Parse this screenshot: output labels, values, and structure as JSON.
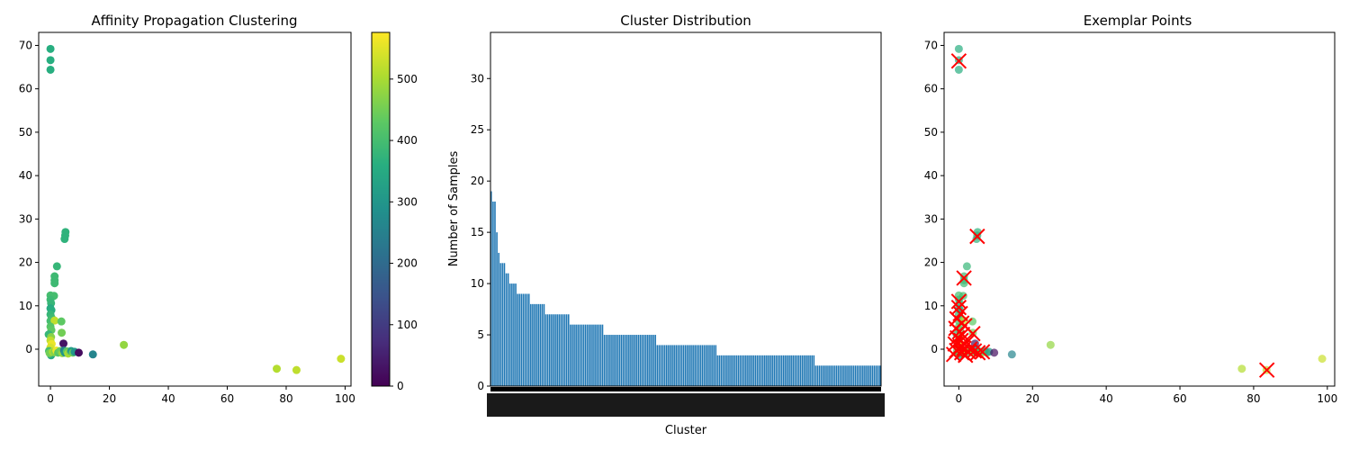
{
  "chart_data": [
    {
      "type": "scatter",
      "title": "Affinity Propagation Clustering",
      "xlim": [
        -4,
        102
      ],
      "ylim": [
        -8.5,
        73
      ],
      "xticks": [
        0,
        20,
        40,
        60,
        80,
        100
      ],
      "yticks": [
        0,
        10,
        20,
        30,
        40,
        50,
        60,
        70
      ],
      "points": [
        [
          0,
          69.2,
          360
        ],
        [
          0,
          66.6,
          360
        ],
        [
          0,
          64.4,
          360
        ],
        [
          5.1,
          27.0,
          370
        ],
        [
          5.0,
          26.2,
          370
        ],
        [
          4.8,
          25.4,
          370
        ],
        [
          2.2,
          19.1,
          380
        ],
        [
          1.4,
          16.8,
          390
        ],
        [
          1.4,
          15.9,
          390
        ],
        [
          1.4,
          15.2,
          390
        ],
        [
          0,
          12.4,
          400
        ],
        [
          1.2,
          12.3,
          400
        ],
        [
          0,
          11.4,
          390
        ],
        [
          0.2,
          10.6,
          380
        ],
        [
          0,
          9.4,
          350
        ],
        [
          0.3,
          9.0,
          360
        ],
        [
          0,
          8.0,
          380
        ],
        [
          0.4,
          7.2,
          390
        ],
        [
          0,
          6.5,
          400
        ],
        [
          1.4,
          6.6,
          520
        ],
        [
          3.7,
          6.4,
          430
        ],
        [
          0,
          5.2,
          420
        ],
        [
          0.3,
          4.4,
          430
        ],
        [
          3.8,
          3.8,
          450
        ],
        [
          -0.6,
          3.4,
          380
        ],
        [
          0.2,
          2.8,
          470
        ],
        [
          0,
          2.0,
          520
        ],
        [
          0.4,
          1.2,
          560
        ],
        [
          0,
          0.4,
          540
        ],
        [
          -0.5,
          -0.4,
          400
        ],
        [
          0,
          -1.0,
          330
        ],
        [
          0.2,
          -1.4,
          350
        ],
        [
          -0.3,
          -0.9,
          450
        ],
        [
          0.8,
          -0.6,
          500
        ],
        [
          1.4,
          -0.7,
          470
        ],
        [
          2.0,
          -0.3,
          560
        ],
        [
          2.6,
          -0.8,
          420
        ],
        [
          3.3,
          -0.4,
          440
        ],
        [
          4.0,
          -0.9,
          480
        ],
        [
          4.4,
          1.3,
          30
        ],
        [
          4.6,
          -0.3,
          250
        ],
        [
          4.9,
          -0.8,
          300
        ],
        [
          5.6,
          -0.5,
          430
        ],
        [
          6.0,
          -1.0,
          500
        ],
        [
          6.5,
          -0.6,
          480
        ],
        [
          7.0,
          -0.4,
          320
        ],
        [
          7.6,
          -0.8,
          440
        ],
        [
          8.2,
          -0.6,
          300
        ],
        [
          9.6,
          -0.8,
          20
        ],
        [
          14.4,
          -1.2,
          260
        ],
        [
          24.9,
          1.0,
          480
        ],
        [
          76.8,
          -4.5,
          510
        ],
        [
          83.5,
          -4.8,
          520
        ],
        [
          98.6,
          -2.2,
          530
        ]
      ],
      "colorbar": {
        "cmin": 0,
        "cmax": 576,
        "ticks": [
          0,
          100,
          200,
          300,
          400,
          500
        ]
      }
    },
    {
      "type": "bar",
      "title": "Cluster Distribution",
      "xlabel": "Cluster",
      "ylabel": "Number of Samples",
      "ylim": [
        0,
        34.5
      ],
      "yticks": [
        0,
        5,
        10,
        15,
        20,
        25,
        30
      ],
      "bar_color": "#1f77b4",
      "values": [
        19,
        18,
        18,
        15,
        13,
        12,
        12,
        12,
        11,
        11,
        10,
        10,
        10,
        10,
        9,
        9,
        9,
        9,
        9,
        9,
        9,
        8,
        8,
        8,
        8,
        8,
        8,
        8,
        8,
        7,
        7,
        7,
        7,
        7,
        7,
        7,
        7,
        7,
        7,
        7,
        7,
        7,
        6,
        6,
        6,
        6,
        6,
        6,
        6,
        6,
        6,
        6,
        6,
        6,
        6,
        6,
        6,
        6,
        6,
        6,
        5,
        5,
        5,
        5,
        5,
        5,
        5,
        5,
        5,
        5,
        5,
        5,
        5,
        5,
        5,
        5,
        5,
        5,
        5,
        5,
        5,
        5,
        5,
        5,
        5,
        5,
        5,
        5,
        4,
        4,
        4,
        4,
        4,
        4,
        4,
        4,
        4,
        4,
        4,
        4,
        4,
        4,
        4,
        4,
        4,
        4,
        4,
        4,
        4,
        4,
        4,
        4,
        4,
        4,
        4,
        4,
        4,
        4,
        4,
        4,
        3,
        3,
        3,
        3,
        3,
        3,
        3,
        3,
        3,
        3,
        3,
        3,
        3,
        3,
        3,
        3,
        3,
        3,
        3,
        3,
        3,
        3,
        3,
        3,
        3,
        3,
        3,
        3,
        3,
        3,
        3,
        3,
        3,
        3,
        3,
        3,
        3,
        3,
        3,
        3,
        3,
        3,
        3,
        3,
        3,
        3,
        3,
        3,
        3,
        3,
        3,
        3,
        2,
        2,
        2,
        2,
        2,
        2,
        2,
        2,
        2,
        2,
        2,
        2,
        2,
        2,
        2,
        2,
        2,
        2,
        2,
        2,
        2,
        2,
        2,
        2,
        2,
        2,
        2,
        2,
        2,
        2,
        2,
        2,
        2,
        2,
        2
      ]
    },
    {
      "type": "scatter",
      "title": "Exemplar Points",
      "xlim": [
        -4,
        102
      ],
      "ylim": [
        -8.5,
        73
      ],
      "xticks": [
        0,
        20,
        40,
        60,
        80,
        100
      ],
      "yticks": [
        0,
        10,
        20,
        30,
        40,
        50,
        60,
        70
      ],
      "marker_color": "#ff0000",
      "exemplars": [
        [
          0,
          66.4
        ],
        [
          5.0,
          26.0
        ],
        [
          1.4,
          16.4
        ],
        [
          0,
          11.0
        ],
        [
          0,
          9.6
        ],
        [
          0.4,
          8.2
        ],
        [
          -0.5,
          7.0
        ],
        [
          0.8,
          6.0
        ],
        [
          1.6,
          5.4
        ],
        [
          -0.8,
          4.8
        ],
        [
          0.2,
          4.0
        ],
        [
          1.0,
          3.4
        ],
        [
          3.8,
          3.6
        ],
        [
          -0.4,
          2.6
        ],
        [
          0.6,
          2.0
        ],
        [
          2.2,
          1.6
        ],
        [
          -1.0,
          1.2
        ],
        [
          0.4,
          0.6
        ],
        [
          1.4,
          0.2
        ],
        [
          3.0,
          0.0
        ],
        [
          -0.6,
          -0.3
        ],
        [
          0.8,
          -0.8
        ],
        [
          2.6,
          -0.6
        ],
        [
          4.2,
          -0.4
        ],
        [
          5.2,
          -0.8
        ],
        [
          6.4,
          -0.6
        ],
        [
          -1.4,
          -1.2
        ],
        [
          1.8,
          -1.4
        ],
        [
          83.6,
          -4.8
        ]
      ]
    }
  ]
}
